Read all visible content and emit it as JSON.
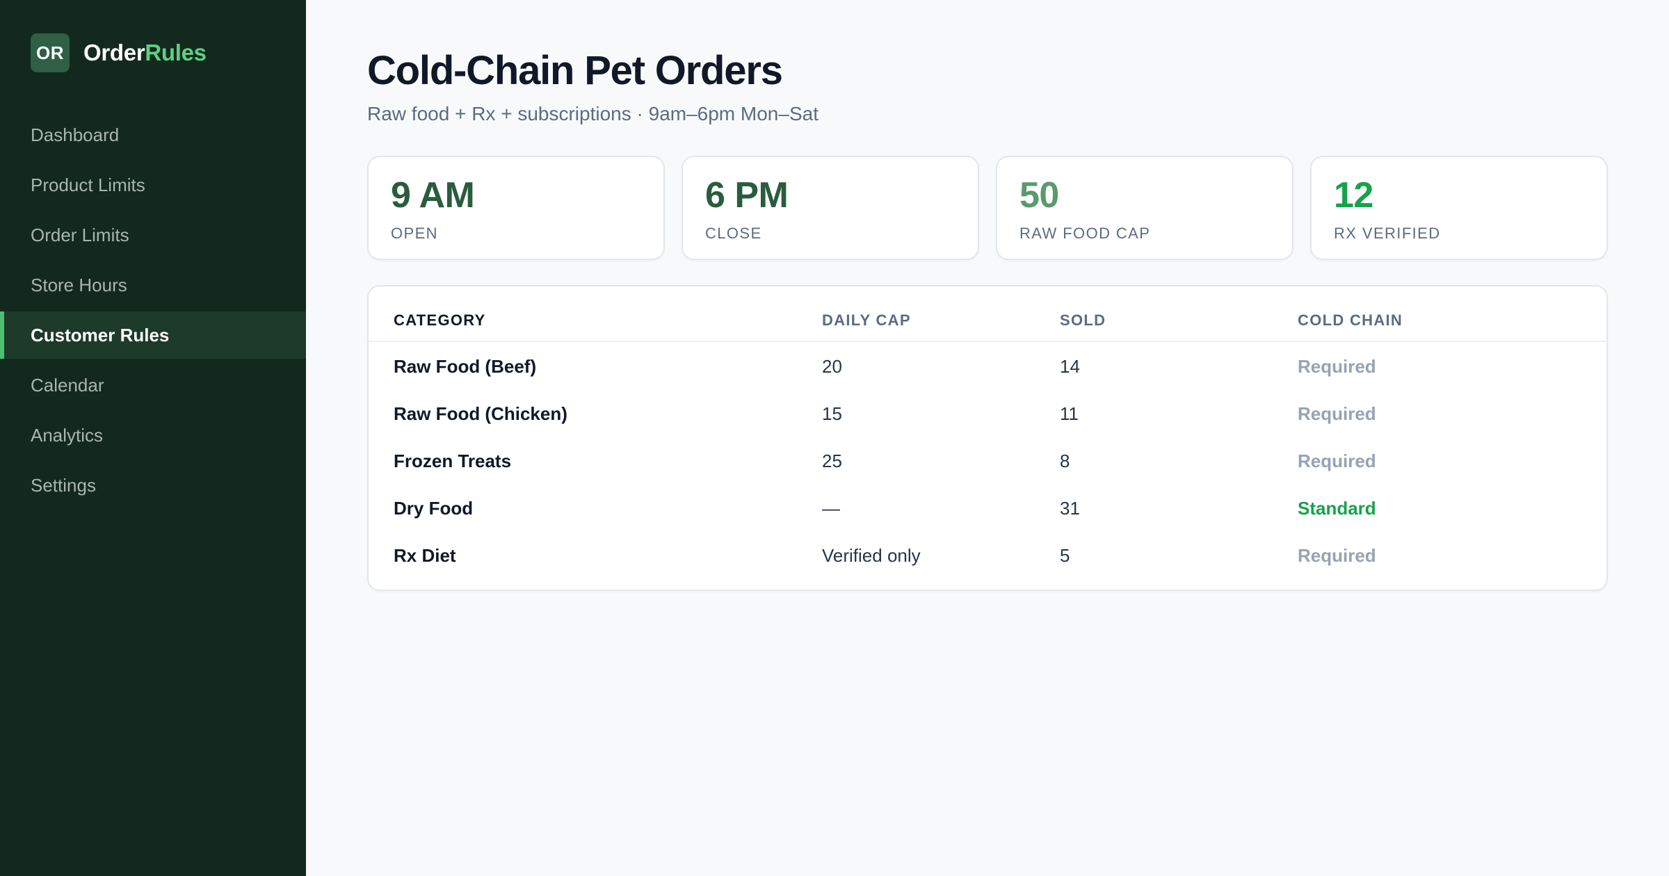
{
  "brand": {
    "badge": "OR",
    "name_part1": "Order",
    "name_part2": "Rules"
  },
  "nav": {
    "items": [
      {
        "label": "Dashboard"
      },
      {
        "label": "Product Limits"
      },
      {
        "label": "Order Limits"
      },
      {
        "label": "Store Hours"
      },
      {
        "label": "Customer Rules",
        "active": true
      },
      {
        "label": "Calendar"
      },
      {
        "label": "Analytics"
      },
      {
        "label": "Settings"
      }
    ]
  },
  "header": {
    "title": "Cold-Chain Pet Orders",
    "subtitle": "Raw food + Rx + subscriptions · 9am–6pm Mon–Sat"
  },
  "stats": [
    {
      "value": "9 AM",
      "label": "OPEN",
      "color": "#2a5c3e"
    },
    {
      "value": "6 PM",
      "label": "CLOSE",
      "color": "#2a5c3e"
    },
    {
      "value": "50",
      "label": "RAW FOOD CAP",
      "color": "#5a9a6c"
    },
    {
      "value": "12",
      "label": "RX VERIFIED",
      "color": "#16a34a"
    }
  ],
  "table": {
    "headers": [
      "CATEGORY",
      "DAILY CAP",
      "SOLD",
      "COLD CHAIN"
    ],
    "rows": [
      {
        "category": "Raw Food (Beef)",
        "daily_cap": "20",
        "sold": "14",
        "cold_chain": "Required"
      },
      {
        "category": "Raw Food (Chicken)",
        "daily_cap": "15",
        "sold": "11",
        "cold_chain": "Required"
      },
      {
        "category": "Frozen Treats",
        "daily_cap": "25",
        "sold": "8",
        "cold_chain": "Required"
      },
      {
        "category": "Dry Food",
        "daily_cap": "—",
        "sold": "31",
        "cold_chain": "Standard"
      },
      {
        "category": "Rx Diet",
        "daily_cap": "Verified only",
        "sold": "5",
        "cold_chain": "Required"
      }
    ]
  },
  "colors": {
    "sidebar_bg": "#13291e",
    "accent": "#5fcf82",
    "status_required": "#97a3b4",
    "status_standard": "#16a34a"
  }
}
